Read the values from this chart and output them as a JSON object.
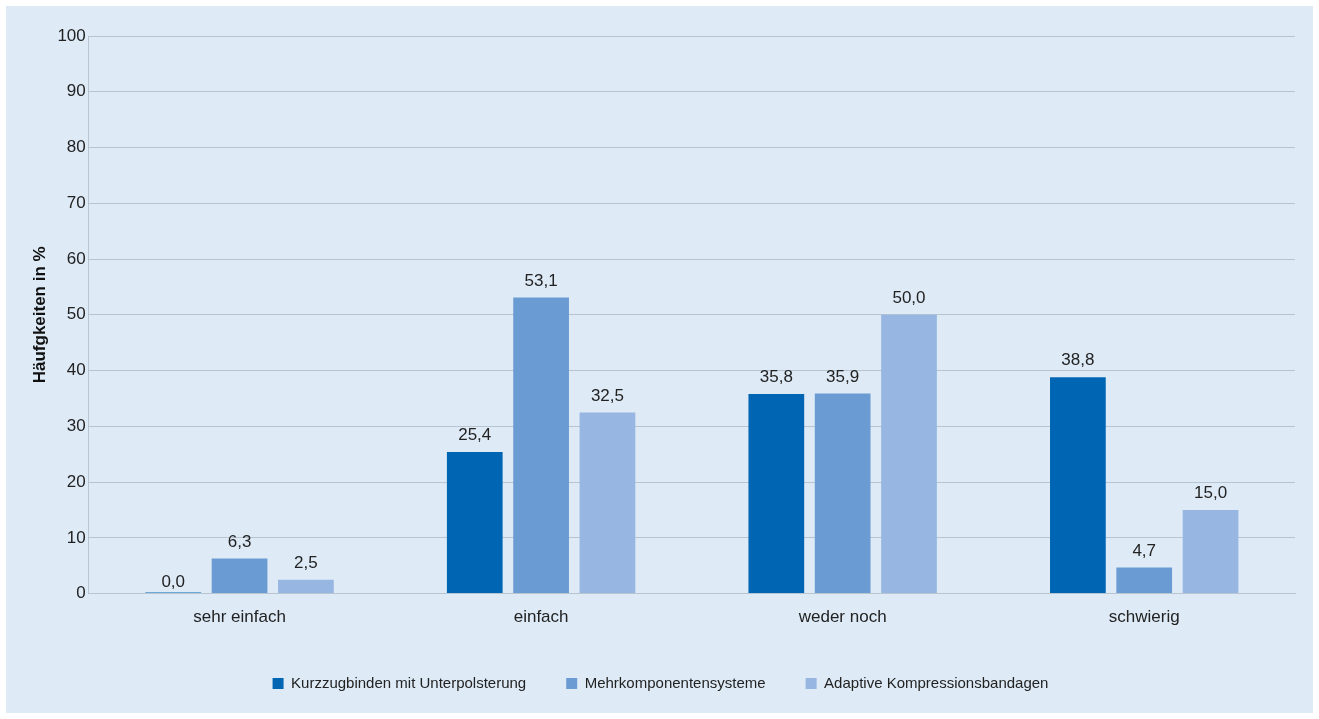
{
  "chart_data": {
    "type": "bar",
    "ylabel": "Häufgkeiten in %",
    "categories": [
      "sehr einfach",
      "einfach",
      "weder noch",
      "schwierig"
    ],
    "series": [
      {
        "name": "Kurzzugbinden mit Unterpolsterung",
        "color": "#0066b3",
        "values": [
          0.0,
          25.4,
          35.8,
          38.8
        ],
        "value_labels": [
          "0,0",
          "25,4",
          "35,8",
          "38,8"
        ]
      },
      {
        "name": "Mehrkomponentensysteme",
        "color": "#6b9bd3",
        "values": [
          6.3,
          53.1,
          35.9,
          4.7
        ],
        "value_labels": [
          "6,3",
          "53,1",
          "35,9",
          "4,7"
        ]
      },
      {
        "name": "Adaptive Kompressionsbandagen",
        "color": "#97b6e2",
        "values": [
          2.5,
          32.5,
          50.0,
          15.0
        ],
        "value_labels": [
          "2,5",
          "32,5",
          "50,0",
          "15,0"
        ]
      }
    ],
    "ylim": [
      0,
      100
    ],
    "yticks": [
      0,
      10,
      20,
      30,
      40,
      50,
      60,
      70,
      80,
      90,
      100
    ],
    "grid": "y",
    "legend": "bottom"
  }
}
